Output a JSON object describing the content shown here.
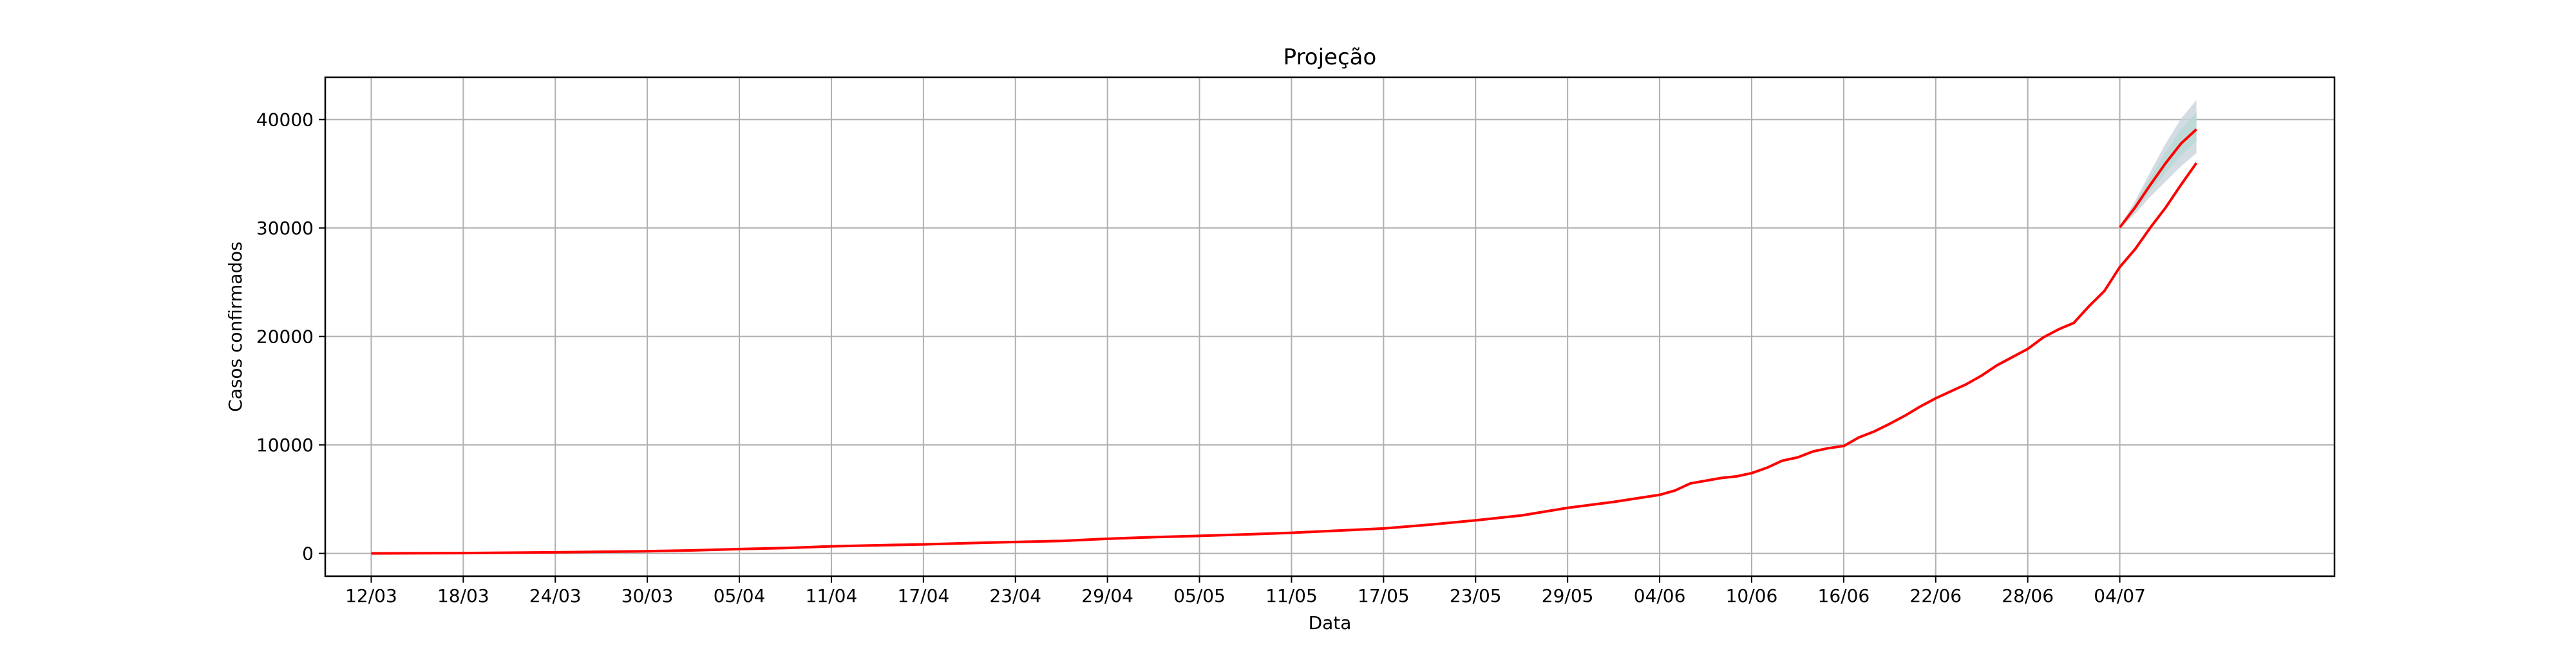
{
  "chart_data": {
    "type": "line",
    "title": "Projeção",
    "xlabel": "Data",
    "ylabel": "Casos confirmados",
    "grid": true,
    "ylim": [
      -2100,
      43900
    ],
    "xlim": [
      -3,
      128
    ],
    "x_tick_labels": [
      "12/03",
      "18/03",
      "24/03",
      "30/03",
      "05/04",
      "11/04",
      "17/04",
      "23/04",
      "29/04",
      "05/05",
      "11/05",
      "17/05",
      "23/05",
      "29/05",
      "04/06",
      "10/06",
      "16/06",
      "22/06",
      "28/06",
      "04/07"
    ],
    "x_tick_values": [
      0,
      6,
      12,
      18,
      24,
      30,
      36,
      42,
      48,
      54,
      60,
      66,
      72,
      78,
      84,
      90,
      96,
      102,
      108,
      114
    ],
    "y_tick_values": [
      0,
      10000,
      20000,
      30000,
      40000
    ],
    "y_tick_labels": [
      "0",
      "10000",
      "20000",
      "30000",
      "40000"
    ],
    "colors": {
      "line": "#ff0000",
      "band_outer": "#c9d3dc",
      "band_inner": "#b7d9d4",
      "grid": "#b0b0b0"
    },
    "series": [
      {
        "x": [
          0,
          6,
          12,
          18,
          21,
          24,
          27,
          30,
          33,
          36,
          39,
          42,
          45,
          48,
          51,
          54,
          57,
          60,
          63,
          66,
          69,
          72,
          75,
          78,
          81,
          84,
          85,
          86,
          87,
          88,
          89,
          90,
          91,
          92,
          93,
          94,
          95,
          96,
          97,
          98,
          99,
          100,
          101,
          102,
          103,
          104,
          105,
          106,
          107,
          108,
          109,
          110,
          111,
          112,
          113,
          114,
          115,
          116,
          117,
          118,
          119
        ],
        "y": [
          0,
          30,
          100,
          200,
          280,
          400,
          500,
          650,
          750,
          830,
          950,
          1050,
          1150,
          1350,
          1500,
          1620,
          1750,
          1900,
          2100,
          2300,
          2650,
          3050,
          3500,
          4200,
          4750,
          5400,
          5800,
          6450,
          6700,
          6950,
          7100,
          7400,
          7900,
          8550,
          8850,
          9400,
          9700,
          9900,
          10700,
          11250,
          11950,
          12700,
          13550,
          14300,
          14950,
          15600,
          16400,
          17350,
          18100,
          18850,
          19900,
          20650,
          21250,
          22800,
          24200,
          26400,
          28050,
          30050,
          31900,
          34000,
          36000
        ]
      },
      {
        "x": [
          114,
          115,
          116,
          117,
          118,
          119
        ],
        "y": [
          30050,
          31900,
          34000,
          36000,
          37800,
          39100
        ]
      }
    ],
    "band": {
      "x": [
        114,
        115,
        116,
        117,
        118,
        119
      ],
      "upper": [
        30150,
        32500,
        35200,
        37800,
        40100,
        41800
      ],
      "lower": [
        29950,
        31300,
        32900,
        34300,
        35700,
        36900
      ]
    }
  }
}
